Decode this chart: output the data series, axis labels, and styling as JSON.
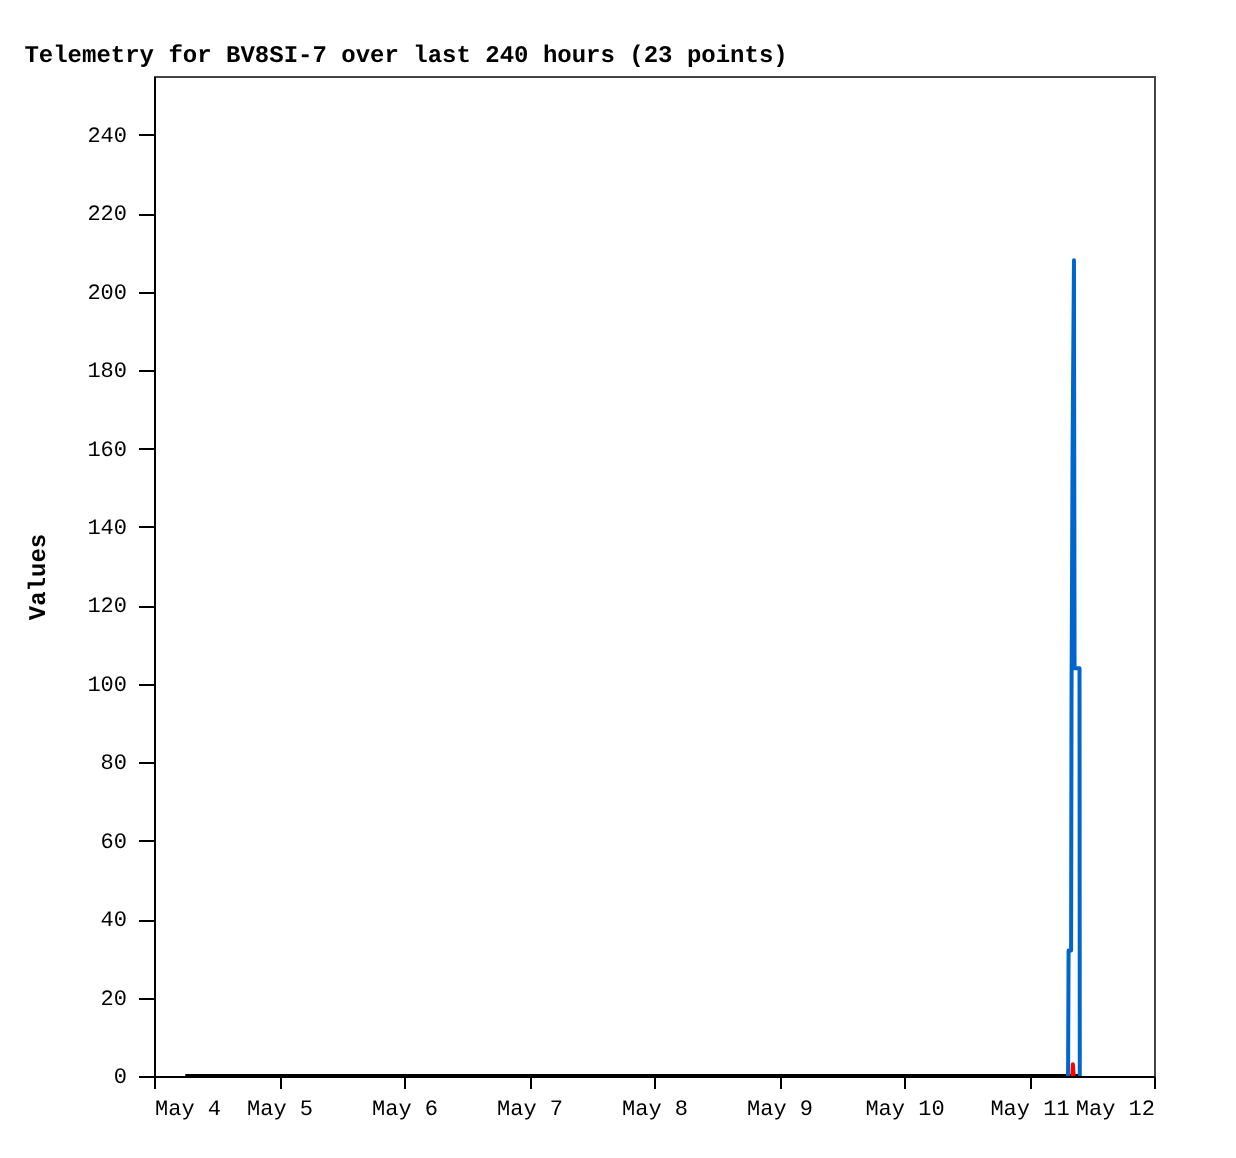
{
  "chart_data": {
    "type": "line",
    "title": "Telemetry for BV8SI-7 over last 240 hours (23 points)",
    "ylabel": "Values",
    "xlim": [
      "--05-04",
      "--05-12"
    ],
    "xticks": [
      {
        "value": "--05-04",
        "label": "May 4"
      },
      {
        "value": "--05-05",
        "label": "May 5"
      },
      {
        "value": "--05-06",
        "label": "May 6"
      },
      {
        "value": "--05-07",
        "label": "May 7"
      },
      {
        "value": "--05-08",
        "label": "May 8"
      },
      {
        "value": "--05-09",
        "label": "May 9"
      },
      {
        "value": "--05-10",
        "label": "May 10"
      },
      {
        "value": "--05-11",
        "label": "May 11"
      },
      {
        "value": "--05-12",
        "label": "May 12"
      }
    ],
    "ylim": [
      0,
      255
    ],
    "yticks": [
      0,
      20,
      40,
      60,
      80,
      100,
      120,
      140,
      160,
      180,
      200,
      220,
      240
    ],
    "grid": false,
    "series": [
      {
        "color": "#000000",
        "x": [
          "--05-04T06:00",
          "--05-06T00:00",
          "--05-08T00:00",
          "--05-10T00:00",
          "--05-11T09:45"
        ],
        "values": [
          0,
          0,
          0,
          0,
          0
        ]
      },
      {
        "color": "#0066cc",
        "x": [
          "--05-11T07:30",
          "--05-11T07:36",
          "--05-11T08:05",
          "--05-11T08:10",
          "--05-11T08:22",
          "--05-11T08:38",
          "--05-11T08:45",
          "--05-11T09:42",
          "--05-11T09:45"
        ],
        "values": [
          0,
          32,
          32,
          97,
          160,
          208,
          104,
          104,
          0
        ]
      },
      {
        "color": "#ff0000",
        "x": [
          "--05-11T08:20",
          "--05-11T08:25",
          "--05-11T08:35"
        ],
        "values": [
          0,
          3,
          0
        ]
      }
    ]
  }
}
